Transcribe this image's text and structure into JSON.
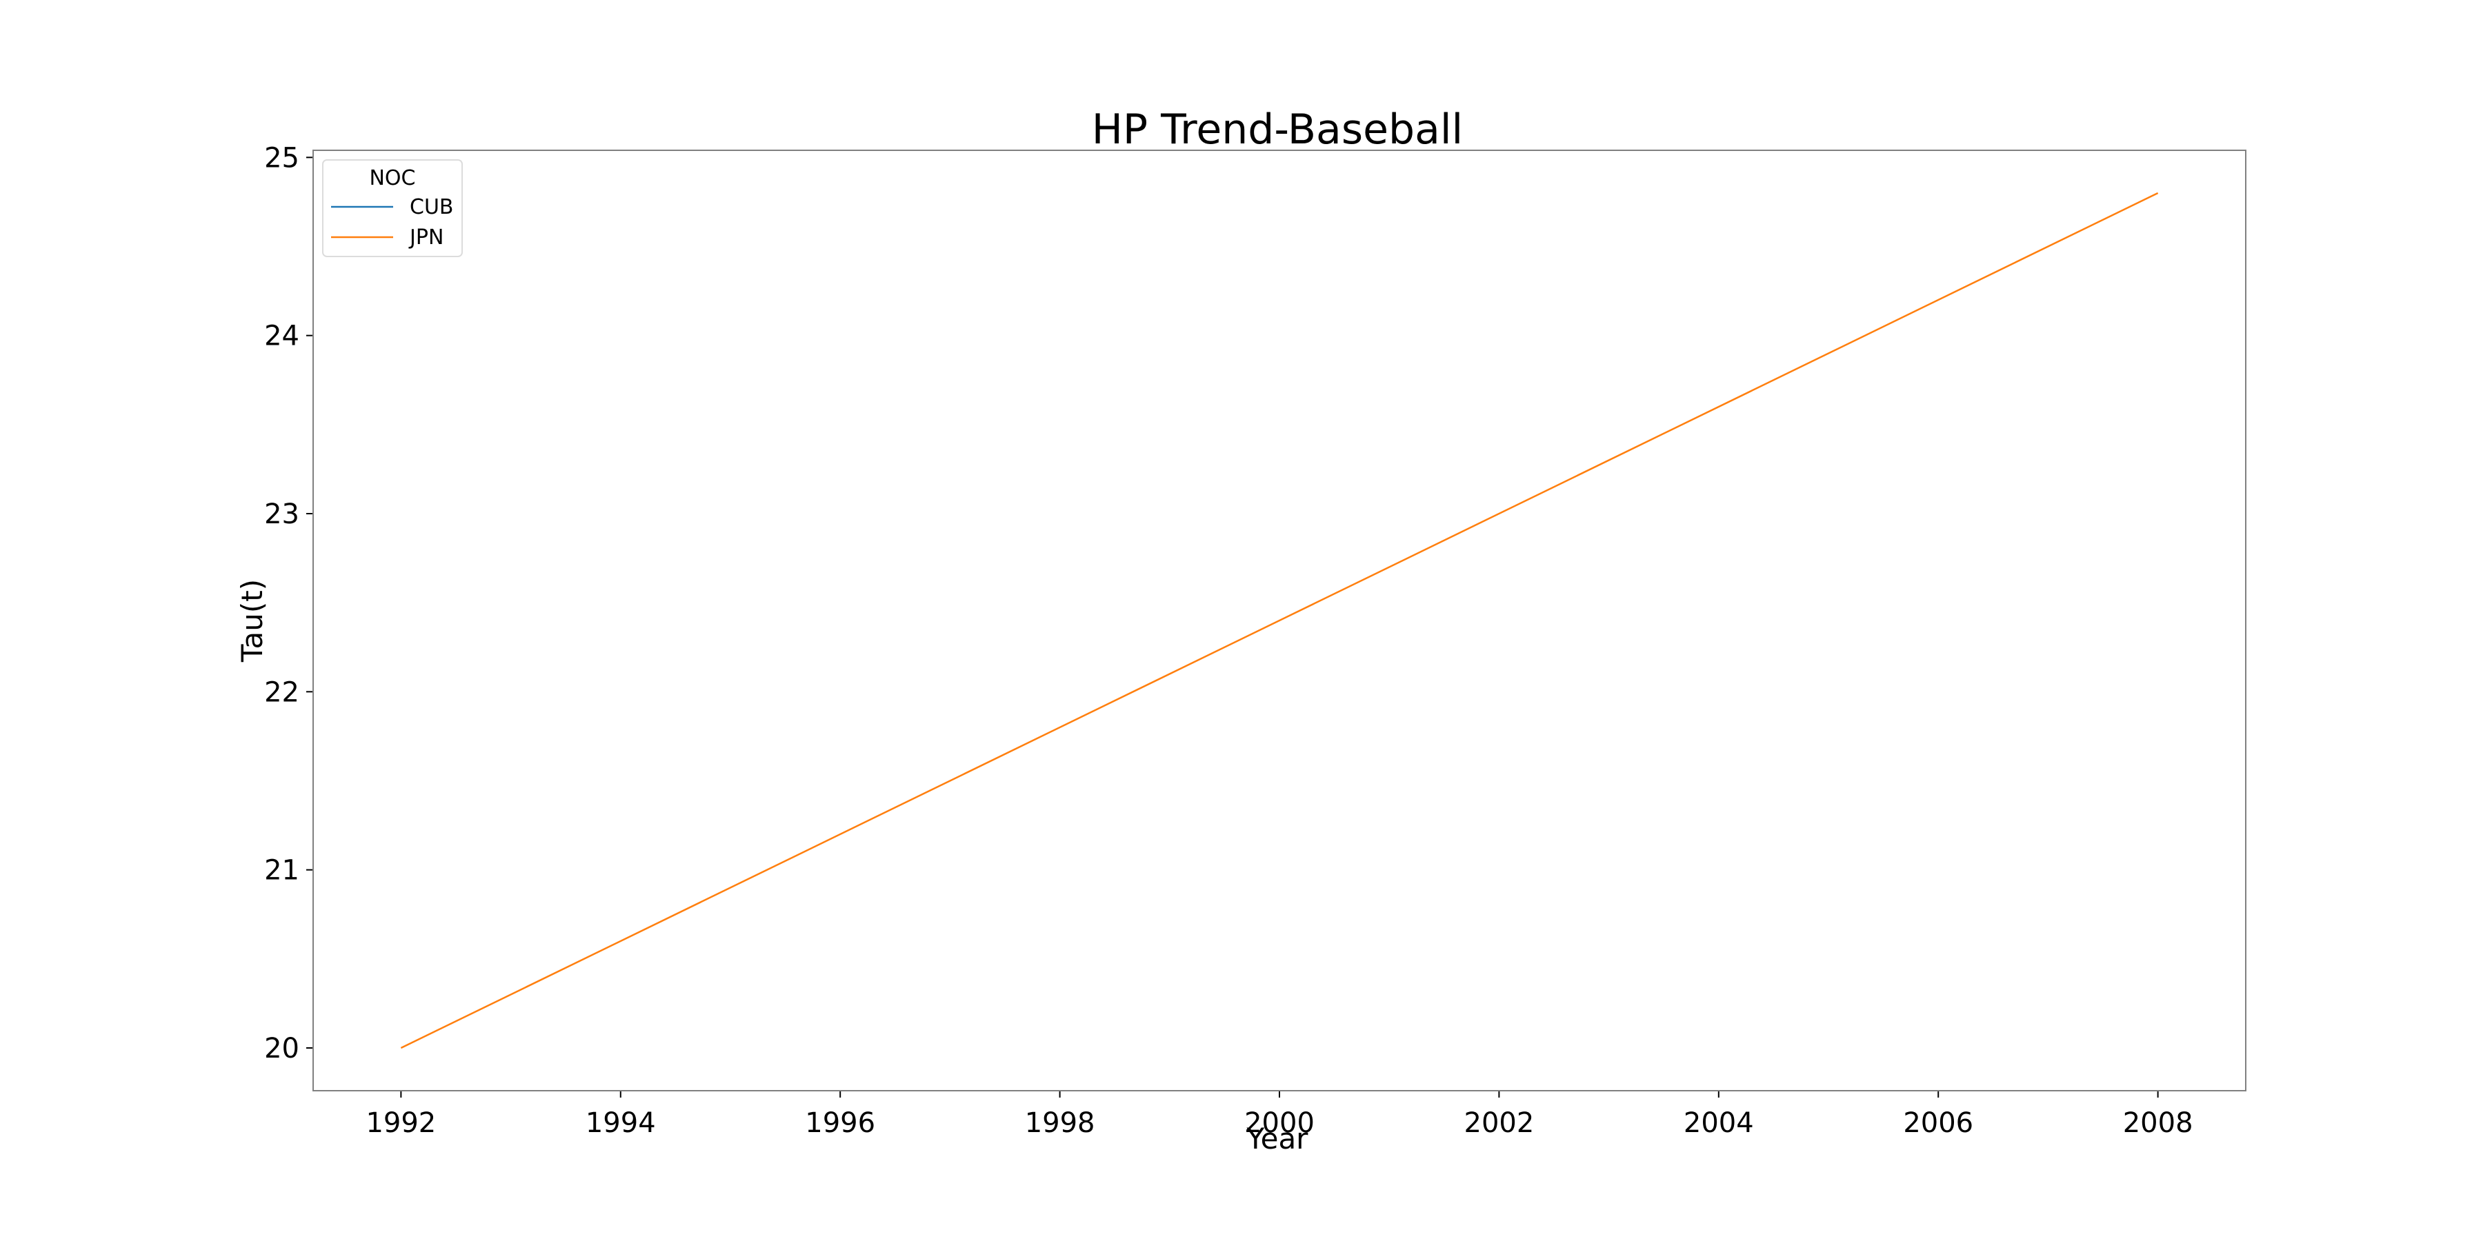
{
  "chart_data": {
    "type": "line",
    "title": "HP Trend-Baseball",
    "xlabel": "Year",
    "ylabel": "Tau(t)",
    "xlim": [
      1991.2,
      2008.8
    ],
    "ylim": [
      19.76,
      25.04
    ],
    "xticks": [
      1992,
      1994,
      1996,
      1998,
      2000,
      2002,
      2004,
      2006,
      2008
    ],
    "yticks": [
      20,
      21,
      22,
      23,
      24,
      25
    ],
    "grid": false,
    "legend": {
      "title": "NOC",
      "placement": "top-left"
    },
    "series": [
      {
        "name": "CUB",
        "color": "#1f77b4",
        "x": [],
        "y": []
      },
      {
        "name": "JPN",
        "color": "#ff7f0e",
        "x": [
          1992,
          2008
        ],
        "y": [
          20.0,
          24.8
        ]
      }
    ]
  }
}
